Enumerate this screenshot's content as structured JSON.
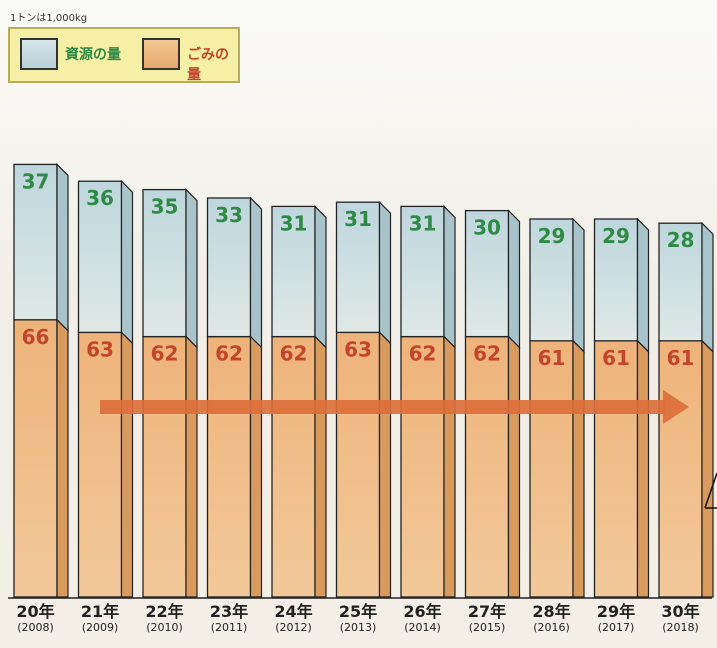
{
  "unit_note": "1トンは1,000kg",
  "legend": {
    "resource_label": "資源の量",
    "trash_label": "ごみの量"
  },
  "colors": {
    "resource_fill": "#c9dde3",
    "resource_text": "#2e8a45",
    "trash_fill": "#ebb47a",
    "trash_text": "#c2452c",
    "arrow": "#dc6f3b",
    "legend_bg": "#f5f0a6"
  },
  "chart_data": {
    "type": "bar",
    "stacked": true,
    "categories": [
      "20年",
      "21年",
      "22年",
      "23年",
      "24年",
      "25年",
      "26年",
      "27年",
      "28年",
      "29年",
      "30年"
    ],
    "category_sublabels": [
      "(2008)",
      "(2009)",
      "(2010)",
      "(2011)",
      "(2012)",
      "(2013)",
      "(2014)",
      "(2015)",
      "(2016)",
      "(2017)",
      "(2018)"
    ],
    "series": [
      {
        "name": "ごみの量",
        "values": [
          66,
          63,
          62,
          62,
          62,
          63,
          62,
          62,
          61,
          61,
          61
        ]
      },
      {
        "name": "資源の量",
        "values": [
          37,
          36,
          35,
          33,
          31,
          31,
          31,
          30,
          29,
          29,
          28
        ]
      }
    ],
    "trend_arrow": "right"
  }
}
